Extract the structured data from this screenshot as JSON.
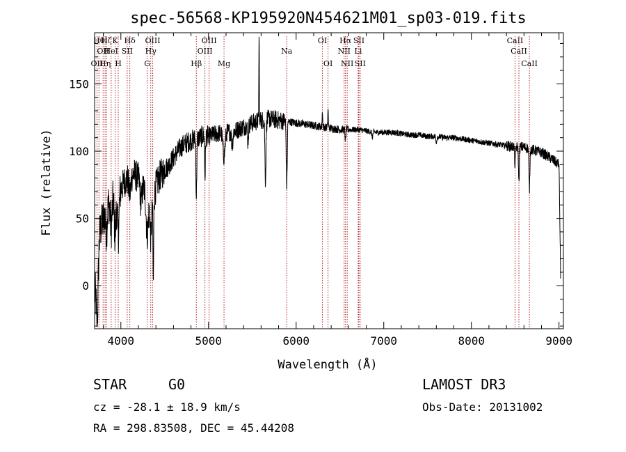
{
  "chart_data": {
    "type": "line",
    "title": "spec-56568-KP195920N454621M01_sp03-019.fits",
    "xlabel": "Wavelength (Å)",
    "ylabel": "Flux (relative)",
    "xlim": [
      3700,
      9050
    ],
    "ylim": [
      -32,
      188
    ],
    "x_ticks": [
      4000,
      5000,
      6000,
      7000,
      8000,
      9000
    ],
    "x_tick_labels": [
      "4000",
      "5000",
      "6000",
      "7000",
      "8000",
      "9000"
    ],
    "y_ticks": [
      0,
      50,
      100,
      150
    ],
    "y_tick_labels": [
      "0",
      "50",
      "100",
      "150"
    ],
    "grid": false,
    "lines": [
      {
        "wave": 3727,
        "rows": [
          {
            "row": 2,
            "label": "OII"
          }
        ]
      },
      {
        "wave": 3750,
        "rows": [
          {
            "row": 0,
            "label": "Hθ"
          }
        ]
      },
      {
        "wave": 3797,
        "rows": [
          {
            "row": 1,
            "label": "OII"
          }
        ]
      },
      {
        "wave": 3820,
        "rows": [
          {
            "row": 2,
            "label": "Hη"
          }
        ]
      },
      {
        "wave": 3835,
        "rows": [
          {
            "row": 0,
            "label": "Hζ"
          }
        ]
      },
      {
        "wave": 3889,
        "rows": [
          {
            "row": 1,
            "label": "HeI"
          }
        ]
      },
      {
        "wave": 3934,
        "rows": [
          {
            "row": 0,
            "label": "K"
          }
        ]
      },
      {
        "wave": 3970,
        "rows": [
          {
            "row": 2,
            "label": "H"
          }
        ]
      },
      {
        "wave": 4072,
        "rows": [
          {
            "row": 1,
            "label": "SII"
          }
        ]
      },
      {
        "wave": 4102,
        "rows": [
          {
            "row": 0,
            "label": "Hδ"
          }
        ]
      },
      {
        "wave": 4300,
        "rows": [
          {
            "row": 2,
            "label": "G"
          }
        ]
      },
      {
        "wave": 4341,
        "rows": [
          {
            "row": 1,
            "label": "Hγ"
          }
        ]
      },
      {
        "wave": 4363,
        "rows": [
          {
            "row": 0,
            "label": "OIII"
          }
        ]
      },
      {
        "wave": 4861,
        "rows": [
          {
            "row": 2,
            "label": "Hβ"
          }
        ]
      },
      {
        "wave": 4959,
        "rows": [
          {
            "row": 1,
            "label": "OIII"
          }
        ]
      },
      {
        "wave": 5007,
        "rows": [
          {
            "row": 0,
            "label": "OIII"
          }
        ]
      },
      {
        "wave": 5177,
        "rows": [
          {
            "row": 2,
            "label": "Mg"
          }
        ]
      },
      {
        "wave": 5893,
        "rows": [
          {
            "row": 1,
            "label": "Na"
          }
        ]
      },
      {
        "wave": 6300,
        "rows": [
          {
            "row": 0,
            "label": "OI"
          }
        ]
      },
      {
        "wave": 6364,
        "rows": [
          {
            "row": 2,
            "label": "OI"
          }
        ]
      },
      {
        "wave": 6548,
        "rows": [
          {
            "row": 1,
            "label": "NII"
          }
        ]
      },
      {
        "wave": 6563,
        "rows": [
          {
            "row": 0,
            "label": "Hα"
          }
        ]
      },
      {
        "wave": 6583,
        "rows": [
          {
            "row": 2,
            "label": "NII"
          }
        ]
      },
      {
        "wave": 6708,
        "rows": [
          {
            "row": 1,
            "label": "Li"
          }
        ]
      },
      {
        "wave": 6716,
        "rows": [
          {
            "row": 0,
            "label": "SII"
          }
        ]
      },
      {
        "wave": 6731,
        "rows": [
          {
            "row": 2,
            "label": "SII"
          }
        ]
      },
      {
        "wave": 8498,
        "rows": [
          {
            "row": 0,
            "label": "CaII"
          }
        ]
      },
      {
        "wave": 8542,
        "rows": [
          {
            "row": 1,
            "label": "CaII"
          }
        ]
      },
      {
        "wave": 8662,
        "rows": [
          {
            "row": 2,
            "label": "CaII"
          }
        ]
      }
    ],
    "spectrum": {
      "wave": [
        3700,
        3760,
        3840,
        3900,
        3950,
        4000,
        4050,
        4100,
        4150,
        4200,
        4250,
        4300,
        4330,
        4360,
        4400,
        4450,
        4500,
        4550,
        4600,
        4650,
        4700,
        4750,
        4800,
        4850,
        4900,
        4950,
        5000,
        5100,
        5200,
        5300,
        5400,
        5500,
        5600,
        5700,
        5800,
        5900,
        6000,
        6100,
        6200,
        6300,
        6400,
        6500,
        6600,
        6700,
        6800,
        6900,
        7000,
        7100,
        7200,
        7300,
        7400,
        7500,
        7600,
        7700,
        7800,
        7900,
        8000,
        8100,
        8200,
        8300,
        8400,
        8500,
        8600,
        8700,
        8800,
        8900,
        8960,
        9000,
        9020
      ],
      "flux": [
        -8,
        40,
        60,
        66,
        65,
        72,
        78,
        83,
        83,
        80,
        74,
        68,
        62,
        58,
        74,
        82,
        86,
        90,
        95,
        100,
        104,
        106,
        108,
        109,
        110,
        112,
        111,
        113,
        114,
        115,
        118,
        121,
        123,
        124,
        123,
        122,
        121,
        120,
        119,
        118,
        117,
        116,
        116,
        116,
        115,
        114,
        114,
        114,
        113,
        112,
        112,
        111,
        111,
        110,
        110,
        109,
        108,
        107,
        106,
        105,
        104,
        103,
        103,
        101,
        99,
        95,
        92,
        90,
        0
      ],
      "features": [
        {
          "wave": 3730,
          "width": 10,
          "depth": 45
        },
        {
          "wave": 3835,
          "width": 10,
          "depth": 18
        },
        {
          "wave": 3889,
          "width": 10,
          "depth": 22
        },
        {
          "wave": 3934,
          "width": 9,
          "depth": 28
        },
        {
          "wave": 3970,
          "width": 9,
          "depth": 30
        },
        {
          "wave": 4102,
          "width": 12,
          "depth": 15
        },
        {
          "wave": 4230,
          "width": 10,
          "depth": 15
        },
        {
          "wave": 4300,
          "width": 12,
          "depth": 30
        },
        {
          "wave": 4341,
          "width": 8,
          "depth": 25
        },
        {
          "wave": 4370,
          "width": 4,
          "depth": 60
        },
        {
          "wave": 4861,
          "width": 5,
          "depth": 42
        },
        {
          "wave": 4960,
          "width": 5,
          "depth": 30
        },
        {
          "wave": 5176,
          "width": 12,
          "depth": 18
        },
        {
          "wave": 5270,
          "width": 8,
          "depth": 10
        },
        {
          "wave": 5450,
          "width": 6,
          "depth": 12
        },
        {
          "wave": 5577,
          "width": 2.5,
          "depth": -65
        },
        {
          "wave": 5650,
          "width": 6,
          "depth": 45
        },
        {
          "wave": 5890,
          "width": 5,
          "depth": 30
        },
        {
          "wave": 5896,
          "width": 4,
          "depth": 28
        },
        {
          "wave": 6300,
          "width": 3,
          "depth": -12
        },
        {
          "wave": 6364,
          "width": 3,
          "depth": -14
        },
        {
          "wave": 6563,
          "width": 4,
          "depth": 9
        },
        {
          "wave": 6870,
          "width": 6,
          "depth": 4
        },
        {
          "wave": 7600,
          "width": 6,
          "depth": 4
        },
        {
          "wave": 8498,
          "width": 4,
          "depth": 15
        },
        {
          "wave": 8542,
          "width": 5,
          "depth": 25
        },
        {
          "wave": 8662,
          "width": 5,
          "depth": 30
        }
      ]
    }
  },
  "info": {
    "class": "STAR",
    "subclass": "G0",
    "survey": "LAMOST DR3",
    "redshift": "cz = -28.1 ± 18.9 km/s",
    "obs_date": "Obs-Date: 20131002",
    "coords": "RA = 298.83508, DEC =  45.44208"
  },
  "colors": {
    "axis": "#000000",
    "spectrum": "#000000",
    "line_marker": "#b22222"
  }
}
